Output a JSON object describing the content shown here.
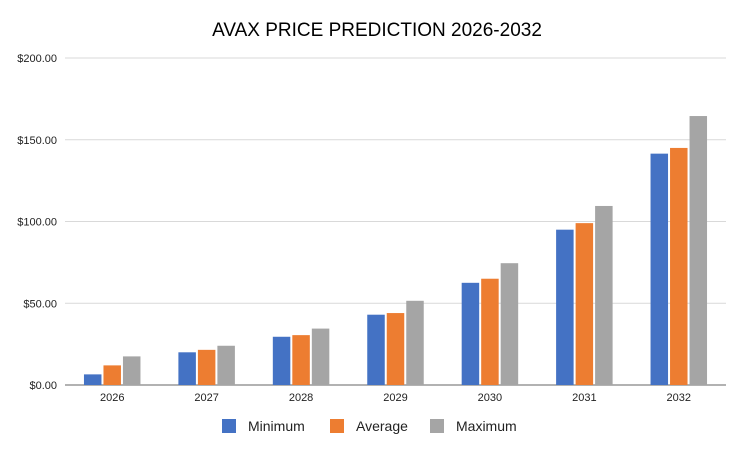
{
  "chart_data": {
    "type": "bar",
    "title": "AVAX PRICE PREDICTION 2026-2032",
    "xlabel": "",
    "ylabel": "",
    "categories": [
      "2026",
      "2027",
      "2028",
      "2029",
      "2030",
      "2031",
      "2032"
    ],
    "series": [
      {
        "name": "Minimum",
        "color": "#4472c4",
        "values": [
          6.5,
          20,
          29.5,
          43,
          62.5,
          95,
          141.5
        ]
      },
      {
        "name": "Average",
        "color": "#ed7d31",
        "values": [
          12,
          21.5,
          30.5,
          44,
          65,
          99,
          145
        ]
      },
      {
        "name": "Maximum",
        "color": "#a5a5a5",
        "values": [
          17.5,
          24,
          34.5,
          51.5,
          74.5,
          109.5,
          164.5
        ]
      }
    ],
    "ylim": [
      0,
      200
    ],
    "yticks": [
      0,
      50,
      100,
      150,
      200
    ],
    "ytick_labels": [
      "$0.00",
      "$50.00",
      "$100.00",
      "$150.00",
      "$200.00"
    ],
    "grid": true,
    "legend_position": "bottom"
  }
}
